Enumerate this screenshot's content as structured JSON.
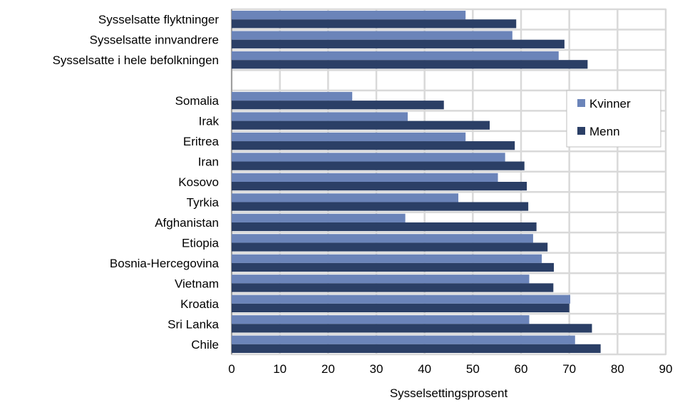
{
  "chart_data": {
    "type": "bar",
    "orientation": "horizontal",
    "xlabel": "Sysselsettingsprosent",
    "xlim": [
      0,
      90
    ],
    "xticks": [
      0,
      10,
      20,
      30,
      40,
      50,
      60,
      70,
      80,
      90
    ],
    "grid": true,
    "legend_position": "right",
    "categories": [
      "Sysselsatte flyktninger",
      "Sysselsatte innvandrere",
      "Sysselsatte i hele befolkningen",
      "",
      "Somalia",
      "Irak",
      "Eritrea",
      "Iran",
      "Kosovo",
      "Tyrkia",
      "Afghanistan",
      "Etiopia",
      "Bosnia-Hercegovina",
      "Vietnam",
      "Kroatia",
      "Sri Lanka",
      "Chile"
    ],
    "series": [
      {
        "name": "Kvinner",
        "color": "#6b84b9",
        "values": [
          48.5,
          58.2,
          67.8,
          null,
          25.0,
          36.5,
          48.5,
          56.7,
          55.2,
          47.0,
          36.0,
          62.5,
          64.3,
          61.7,
          70.2,
          61.7,
          71.2
        ]
      },
      {
        "name": "Menn",
        "color": "#2b3f66",
        "values": [
          59.0,
          69.0,
          73.8,
          null,
          44.0,
          53.5,
          58.7,
          60.7,
          61.2,
          61.5,
          63.2,
          65.5,
          66.8,
          66.7,
          70.0,
          74.7,
          76.5
        ]
      }
    ]
  }
}
